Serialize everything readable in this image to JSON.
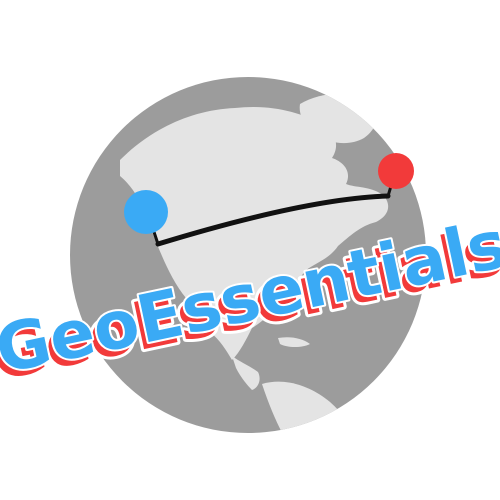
{
  "logo": {
    "wordmark": "GeoEssentials",
    "colors": {
      "globe_ocean": "#9c9c9c",
      "globe_land": "#e4e4e4",
      "route_line": "#111111",
      "pin_origin": "#3aaaf5",
      "pin_destination": "#f23a3a",
      "wordmark_front": "#3aaaf5",
      "wordmark_shadow": "#f23a3a",
      "wordmark_outline": "#ffffff"
    }
  }
}
